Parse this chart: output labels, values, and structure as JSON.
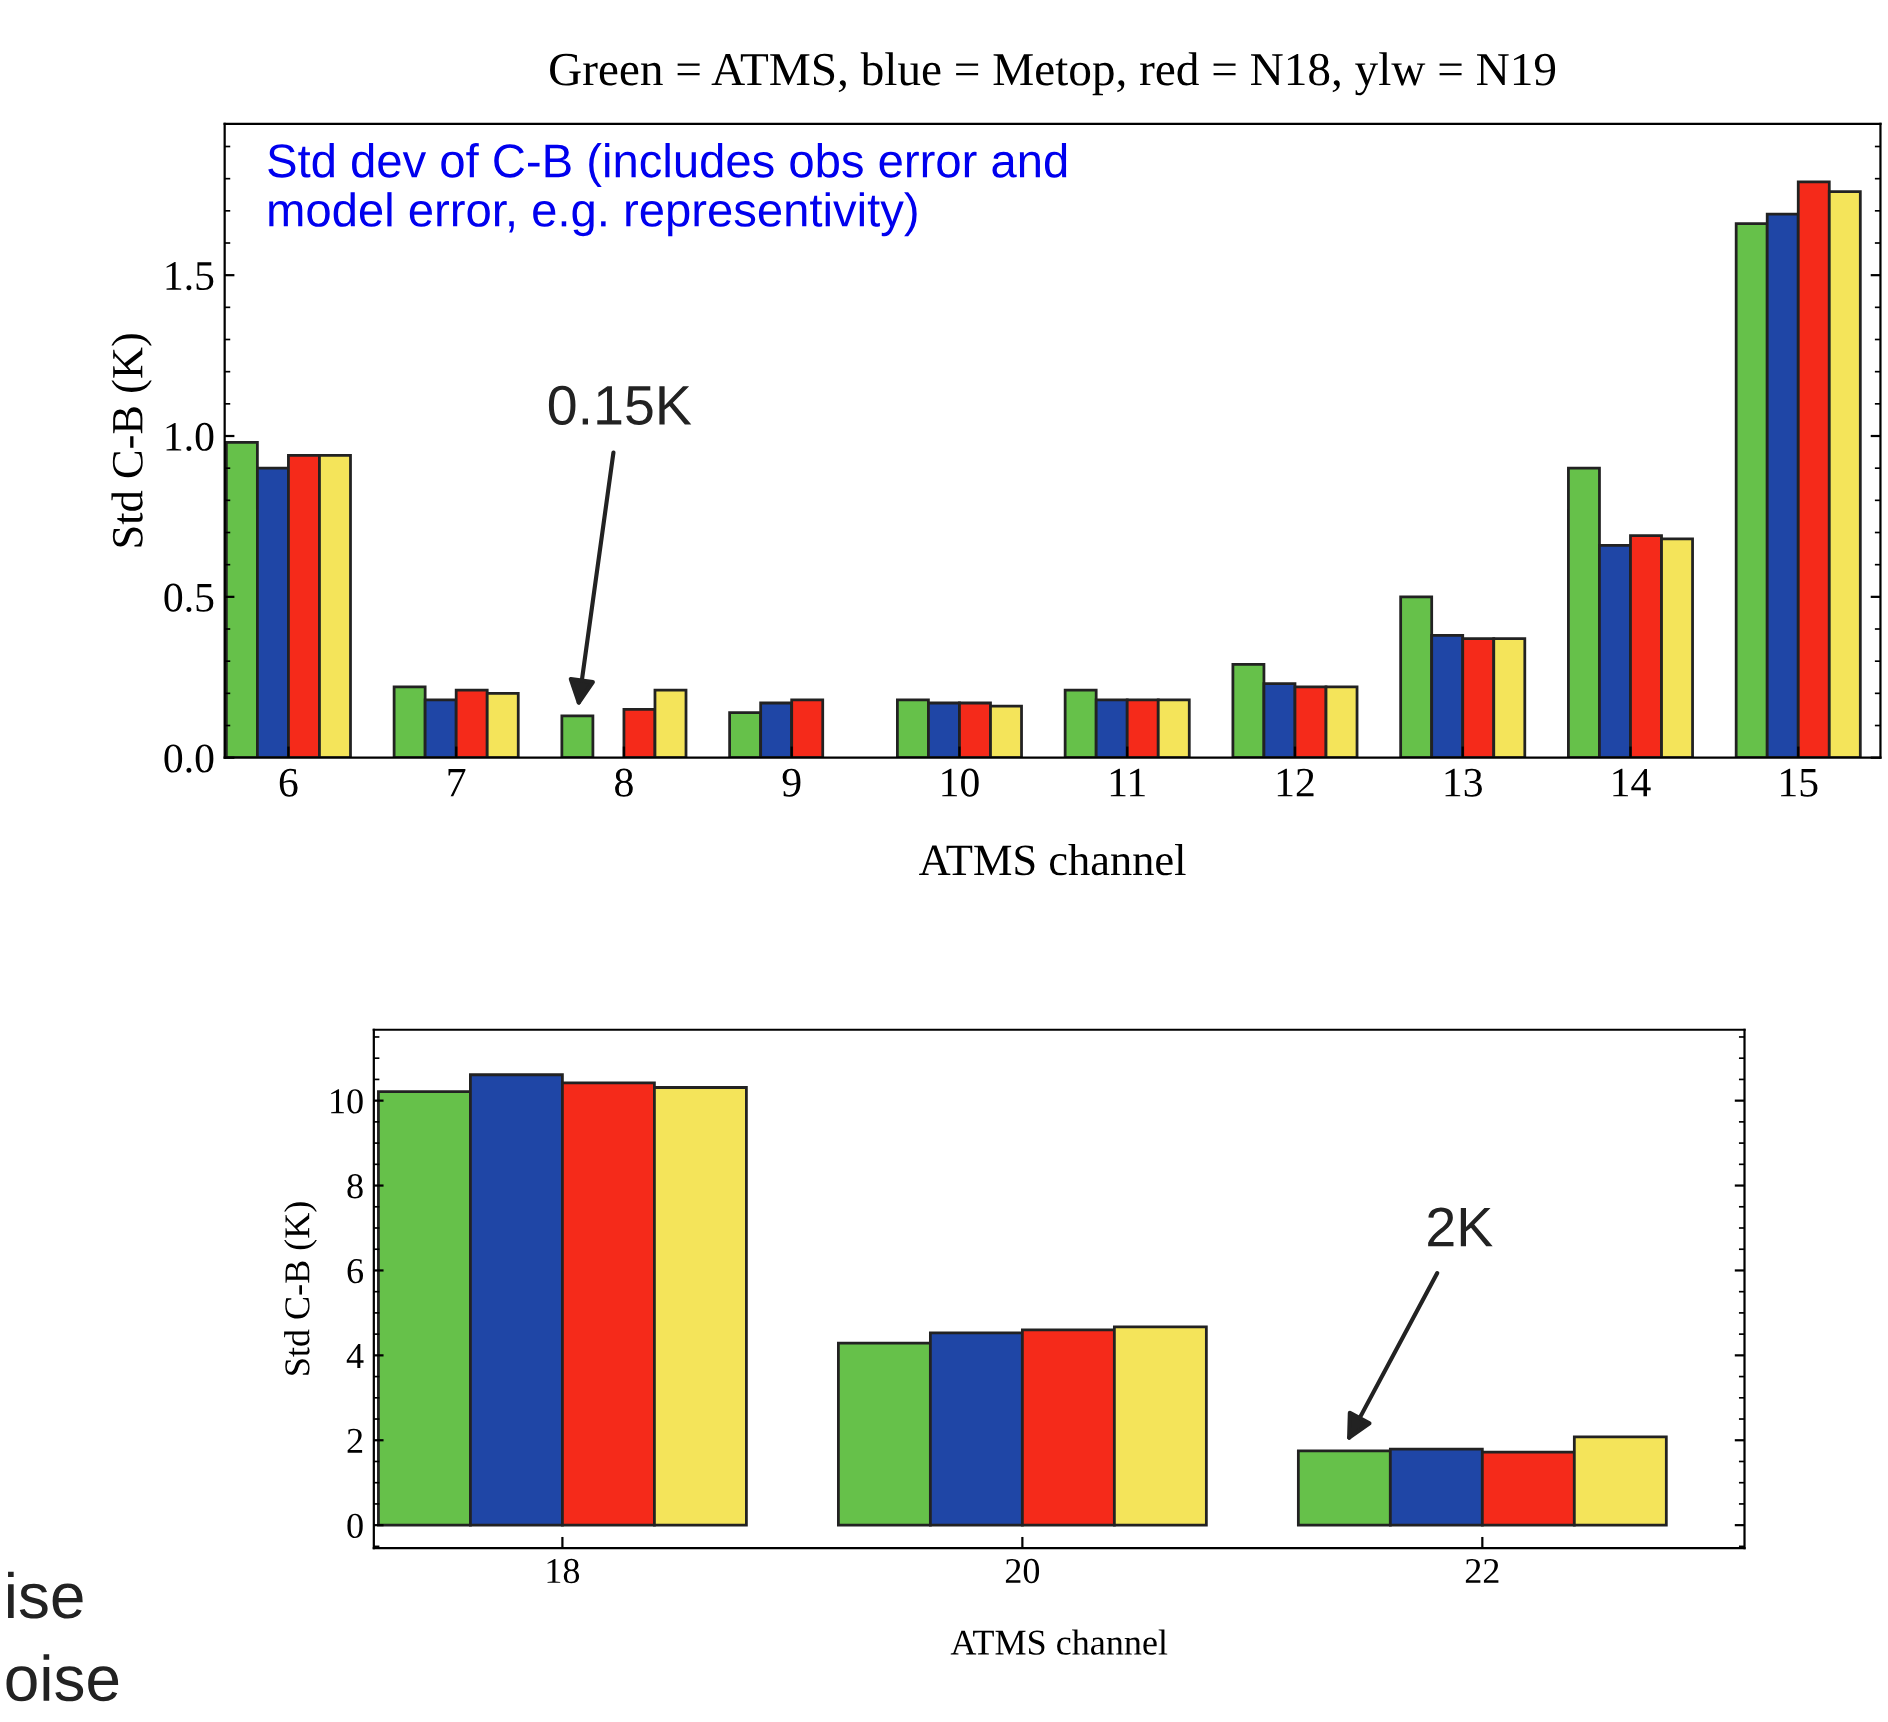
{
  "chart_data": [
    {
      "type": "bar",
      "title": "Green = ATMS, blue = Metop, red = N18, ylw = N19",
      "xlabel": "ATMS channel",
      "ylabel": "Std C-B (K)",
      "categories": [
        "6",
        "7",
        "8",
        "9",
        "10",
        "11",
        "12",
        "13",
        "14",
        "15"
      ],
      "series": [
        {
          "color": "#66c14a",
          "values": [
            0.98,
            0.22,
            0.13,
            0.14,
            0.18,
            0.21,
            0.29,
            0.5,
            0.9,
            1.66
          ]
        },
        {
          "color": "#1f46a6",
          "values": [
            0.9,
            0.18,
            null,
            0.17,
            0.17,
            0.18,
            0.23,
            0.38,
            0.66,
            1.69
          ]
        },
        {
          "color": "#f52a1a",
          "values": [
            0.94,
            0.21,
            0.15,
            0.18,
            0.17,
            0.18,
            0.22,
            0.37,
            0.69,
            1.79
          ]
        },
        {
          "color": "#f4e45a",
          "values": [
            0.94,
            0.2,
            0.21,
            null,
            0.16,
            0.18,
            0.22,
            0.37,
            0.68,
            1.76
          ]
        }
      ],
      "ylim": [
        0,
        1.97
      ],
      "yticks": [
        {
          "value": 0,
          "label": "0.0"
        },
        {
          "value": 0.5,
          "label": "0.5"
        },
        {
          "value": 1.0,
          "label": "1.0"
        },
        {
          "value": 1.5,
          "label": "1.5"
        }
      ],
      "grid": false,
      "legend": false,
      "annotations": [
        "Std dev of C-B (includes obs error and\nmodel error, e.g. representivity)",
        "0.15K"
      ]
    },
    {
      "type": "bar",
      "xlabel": "ATMS channel",
      "ylabel": "Std C-B (K)",
      "categories": [
        "18",
        "20",
        "22"
      ],
      "series": [
        {
          "color": "#66c14a",
          "values": [
            10.21,
            4.29,
            1.75
          ]
        },
        {
          "color": "#1f46a6",
          "values": [
            10.61,
            4.53,
            1.79
          ]
        },
        {
          "color": "#f52a1a",
          "values": [
            10.42,
            4.6,
            1.72
          ]
        },
        {
          "color": "#f4e45a",
          "values": [
            10.31,
            4.67,
            2.08
          ]
        }
      ],
      "ylim": [
        -0.54,
        11.67
      ],
      "yticks": [
        0,
        2,
        4,
        6,
        8,
        10
      ],
      "grid": false,
      "legend": false,
      "annotations": [
        "2K",
        "ise",
        "oise"
      ]
    }
  ]
}
